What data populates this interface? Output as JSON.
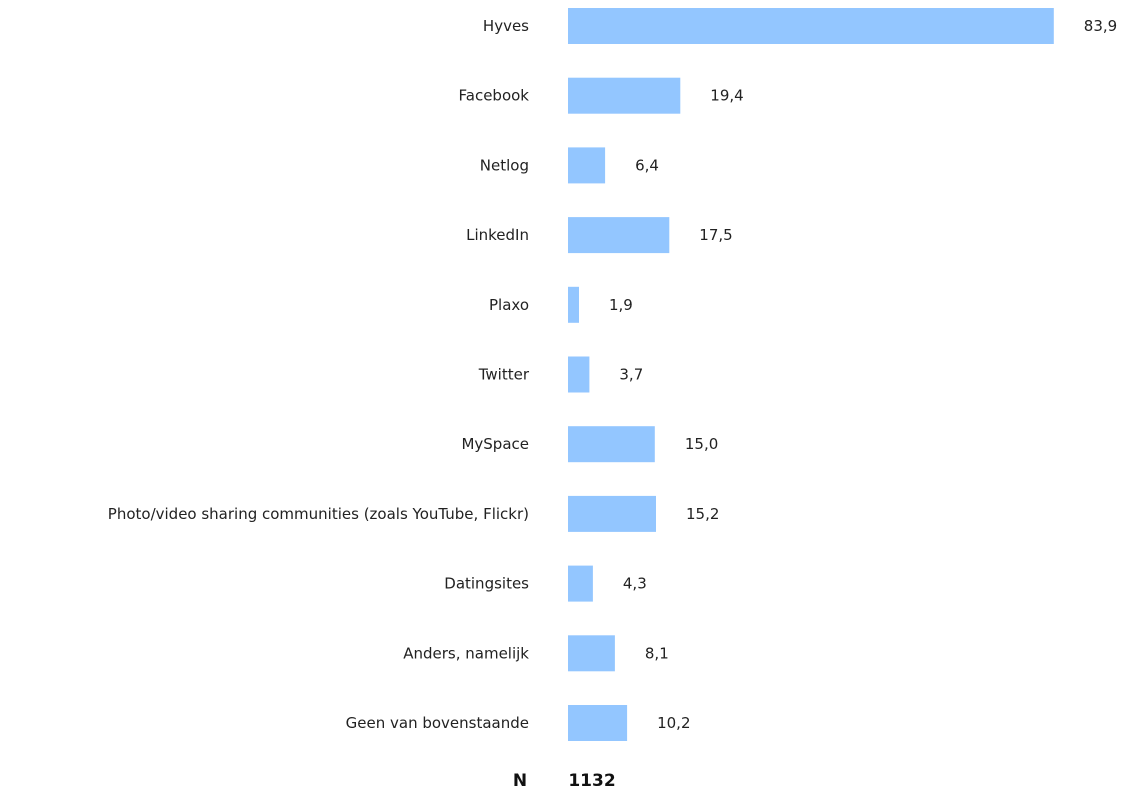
{
  "chart_data": {
    "type": "bar",
    "orientation": "horizontal",
    "categories": [
      "Hyves",
      "Facebook",
      "Netlog",
      "LinkedIn",
      "Plaxo",
      "Twitter",
      "MySpace",
      "Photo/video sharing communities (zoals YouTube, Flickr)",
      "Datingsites",
      "Anders, namelijk",
      "Geen van bovenstaande"
    ],
    "values": [
      83.9,
      19.4,
      6.4,
      17.5,
      1.9,
      3.7,
      15.0,
      15.2,
      4.3,
      8.1,
      10.2
    ],
    "value_labels": [
      "83,9",
      "19,4",
      "6,4",
      "17,5",
      "1,9",
      "3,7",
      "15,0",
      "15,2",
      "4,3",
      "8,1",
      "10,2"
    ],
    "xlim": [
      0,
      100
    ],
    "grid": false,
    "legend": "none",
    "bar_color": "#93c6ff"
  },
  "footer": {
    "n_label": "N",
    "n_value": "1132"
  }
}
